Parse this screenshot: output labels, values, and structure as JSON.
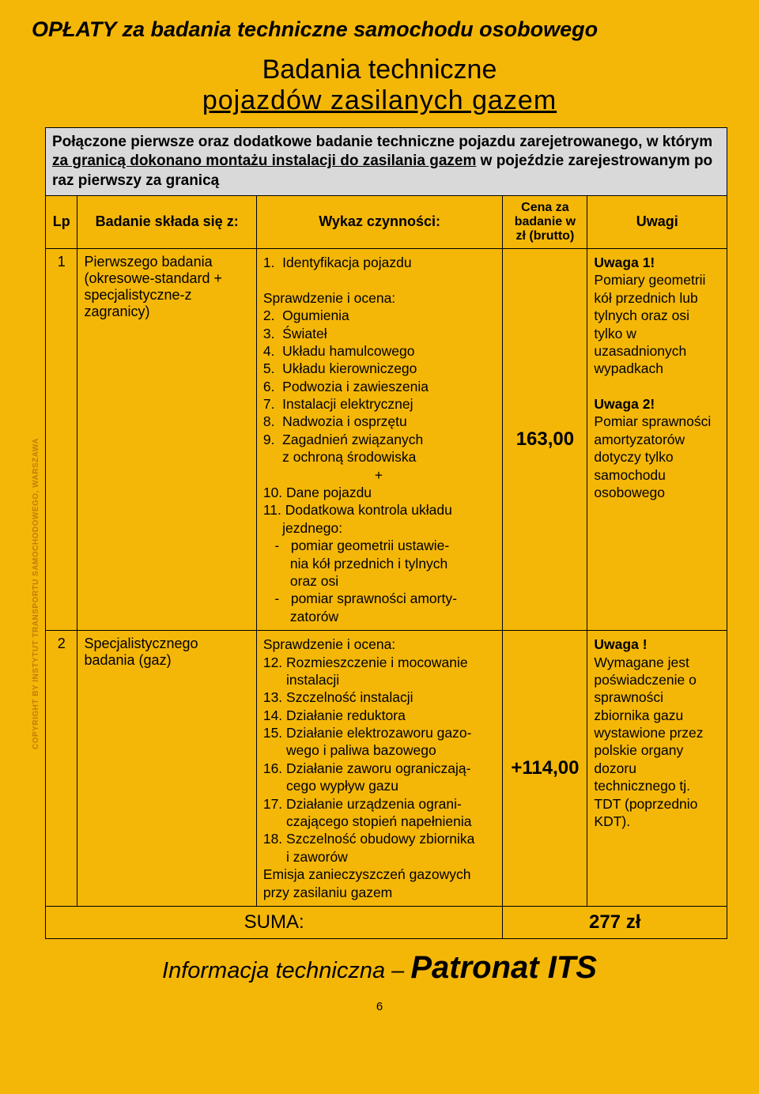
{
  "colors": {
    "page_bg": "#f4b708",
    "intro_bg": "#d9d9d9",
    "border": "#000000",
    "text": "#000000",
    "side_label": "#c07e0a"
  },
  "main_title": "OPŁATY za badania techniczne samochodu osobowego",
  "subtitle_1": "Badania techniczne",
  "subtitle_2": "pojazdów  zasilanych gazem",
  "side_label": "COPYRIGHT BY INSTYTUT TRANSPORTU SAMOCHODOWEGO, WARSZAWA",
  "intro": {
    "part1": "Połączone pierwsze oraz dodatkowe badanie techniczne pojazdu zarejetrowanego, w którym ",
    "part2_u": "za granicą dokonano montażu instalacji do zasilania gazem",
    "part3": " w pojeździe zarejestrowanym po raz pierwszy za granicą"
  },
  "headers": {
    "lp": "Lp",
    "badanie": "Badanie składa się z:",
    "wykaz": "Wykaz czynności:",
    "cena": "Cena za badanie w zł (brutto)",
    "uwagi": "Uwagi"
  },
  "rows": [
    {
      "lp": "1",
      "badanie": "Pierwszego badania (okresowe-standard + specjalistyczne-z zagranicy)",
      "wykaz_lines": [
        "1.  Identyfikacja pojazdu",
        "",
        "Sprawdzenie i ocena:",
        "2.  Ogumienia",
        "3.  Świateł",
        "4.  Układu hamulcowego",
        "5.  Układu kierowniczego",
        "6.  Podwozia i zawieszenia",
        "7.  Instalacji elektrycznej",
        "8.  Nadwozia i osprzętu",
        "9.  Zagadnień związanych",
        "     z ochroną środowiska",
        "                             +",
        "10. Dane pojazdu",
        "11. Dodatkowa kontrola układu",
        "     jezdnego:",
        "   -   pomiar geometrii ustawie-",
        "       nia kół przednich i tylnych",
        "       oraz osi",
        "   -   pomiar sprawności amorty-",
        "       zatorów"
      ],
      "price": "163,00",
      "uwagi_html": "<span class='bold'>Uwaga 1!</span><br>Pomiary geometrii kół przednich lub tylnych oraz osi tylko w uzasadnionych wypadkach<br><br><span class='bold'>Uwaga 2!</span><br>Pomiar sprawności amortyzatorów dotyczy tylko samochodu osobowego"
    },
    {
      "lp": "2",
      "badanie": "Specjalistycznego badania (gaz)",
      "wykaz_lines": [
        "Sprawdzenie i ocena:",
        "12. Rozmieszczenie i mocowanie",
        "      instalacji",
        "13. Szczelność instalacji",
        "14. Działanie reduktora",
        "15. Działanie elektrozaworu gazo-",
        "      wego i paliwa bazowego",
        "16. Działanie zaworu ograniczają-",
        "      cego wypływ gazu",
        "17. Działanie urządzenia ograni-",
        "      czającego stopień napełnienia",
        "18. Szczelność obudowy zbiornika",
        "      i zaworów",
        "Emisja zanieczyszczeń gazowych",
        "przy zasilaniu gazem"
      ],
      "price": "+114,00",
      "uwagi_html": "<span class='bold'>Uwaga !</span><br>Wymagane jest poświadczenie o sprawności zbiornika gazu wystawione przez polskie organy dozoru technicznego tj. TDT (poprzednio KDT)."
    }
  ],
  "suma_label": "SUMA:",
  "suma_value": "277 zł",
  "footer_1": "Informacja techniczna – ",
  "footer_2": "Patronat ITS",
  "page_number": "6"
}
